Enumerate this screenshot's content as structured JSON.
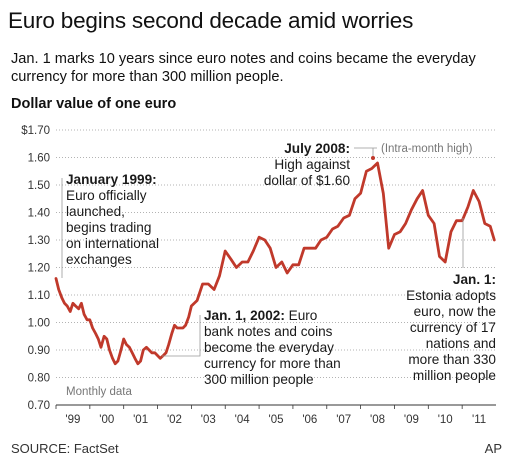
{
  "header": {
    "title": "Euro begins second decade amid worries",
    "subtitle": "Jan. 1 marks 10 years since euro notes and coins became the everyday currency for more than 300 million people."
  },
  "footer": {
    "source": "SOURCE: FactSet",
    "credit": "AP"
  },
  "chart_data": {
    "type": "line",
    "title": "Dollar value of one euro",
    "note": "Monthly data",
    "ylim": [
      0.7,
      1.7
    ],
    "y_ticks": [
      "$1.70",
      "1.60",
      "1.50",
      "1.40",
      "1.30",
      "1.20",
      "1.10",
      "1.00",
      "0.90",
      "0.80",
      "0.70"
    ],
    "x_ticks": [
      "'99",
      "'00",
      "'01",
      "'02",
      "'03",
      "'04",
      "'05",
      "'06",
      "'07",
      "'08",
      "'09",
      "'10",
      "'11"
    ],
    "grid": "horizontal dotted",
    "line_color": "#c0392b",
    "x": [
      1999.0,
      1999.08,
      1999.17,
      1999.25,
      1999.33,
      1999.42,
      1999.5,
      1999.58,
      1999.67,
      1999.75,
      1999.83,
      1999.92,
      2000.0,
      2000.08,
      2000.17,
      2000.25,
      2000.33,
      2000.42,
      2000.5,
      2000.58,
      2000.67,
      2000.75,
      2000.83,
      2000.92,
      2001.0,
      2001.08,
      2001.17,
      2001.25,
      2001.33,
      2001.42,
      2001.5,
      2001.58,
      2001.67,
      2001.75,
      2001.83,
      2001.92,
      2002.0,
      2002.08,
      2002.17,
      2002.25,
      2002.33,
      2002.42,
      2002.5,
      2002.58,
      2002.67,
      2002.75,
      2002.83,
      2002.92,
      2003.0,
      2003.17,
      2003.33,
      2003.5,
      2003.67,
      2003.83,
      2004.0,
      2004.17,
      2004.33,
      2004.5,
      2004.67,
      2004.83,
      2005.0,
      2005.17,
      2005.33,
      2005.5,
      2005.67,
      2005.83,
      2006.0,
      2006.17,
      2006.33,
      2006.5,
      2006.67,
      2006.83,
      2007.0,
      2007.17,
      2007.33,
      2007.5,
      2007.67,
      2007.83,
      2008.0,
      2008.17,
      2008.33,
      2008.5,
      2008.67,
      2008.83,
      2009.0,
      2009.17,
      2009.33,
      2009.5,
      2009.67,
      2009.83,
      2010.0,
      2010.17,
      2010.33,
      2010.5,
      2010.67,
      2010.83,
      2011.0,
      2011.17,
      2011.33,
      2011.5,
      2011.67,
      2011.83,
      2011.95
    ],
    "values": [
      1.16,
      1.12,
      1.09,
      1.07,
      1.06,
      1.04,
      1.07,
      1.06,
      1.05,
      1.07,
      1.03,
      1.01,
      1.01,
      0.98,
      0.96,
      0.94,
      0.91,
      0.95,
      0.94,
      0.9,
      0.87,
      0.85,
      0.86,
      0.9,
      0.94,
      0.92,
      0.91,
      0.89,
      0.87,
      0.85,
      0.86,
      0.9,
      0.91,
      0.9,
      0.89,
      0.89,
      0.88,
      0.87,
      0.88,
      0.89,
      0.92,
      0.96,
      0.99,
      0.98,
      0.98,
      0.98,
      0.99,
      1.02,
      1.06,
      1.08,
      1.14,
      1.14,
      1.12,
      1.17,
      1.26,
      1.23,
      1.2,
      1.22,
      1.22,
      1.26,
      1.31,
      1.3,
      1.27,
      1.2,
      1.22,
      1.18,
      1.21,
      1.21,
      1.27,
      1.27,
      1.27,
      1.3,
      1.31,
      1.34,
      1.35,
      1.38,
      1.39,
      1.45,
      1.47,
      1.55,
      1.56,
      1.58,
      1.47,
      1.27,
      1.32,
      1.33,
      1.36,
      1.41,
      1.45,
      1.48,
      1.39,
      1.36,
      1.24,
      1.22,
      1.33,
      1.37,
      1.37,
      1.42,
      1.48,
      1.44,
      1.36,
      1.35,
      1.3
    ],
    "annotations": {
      "jan1999": {
        "title": "January 1999:",
        "lines": [
          "Euro officially",
          "launched,",
          "begins trading",
          "on international",
          "exchanges"
        ]
      },
      "jul2008": {
        "title": "July 2008:",
        "lines": [
          "High against",
          "dollar of $1.60"
        ],
        "note": "(Intra-month high)"
      },
      "jan2002": {
        "title": "Jan. 1, 2002:",
        "first_rest": " Euro",
        "lines": [
          "bank notes and coins",
          "become the everyday",
          "currency for more than",
          "300 million people"
        ]
      },
      "jan2011": {
        "title": "Jan. 1:",
        "lines": [
          "Estonia adopts",
          "euro, now the",
          "currency of 17",
          "nations and",
          "more than 330",
          "million people"
        ]
      }
    }
  }
}
